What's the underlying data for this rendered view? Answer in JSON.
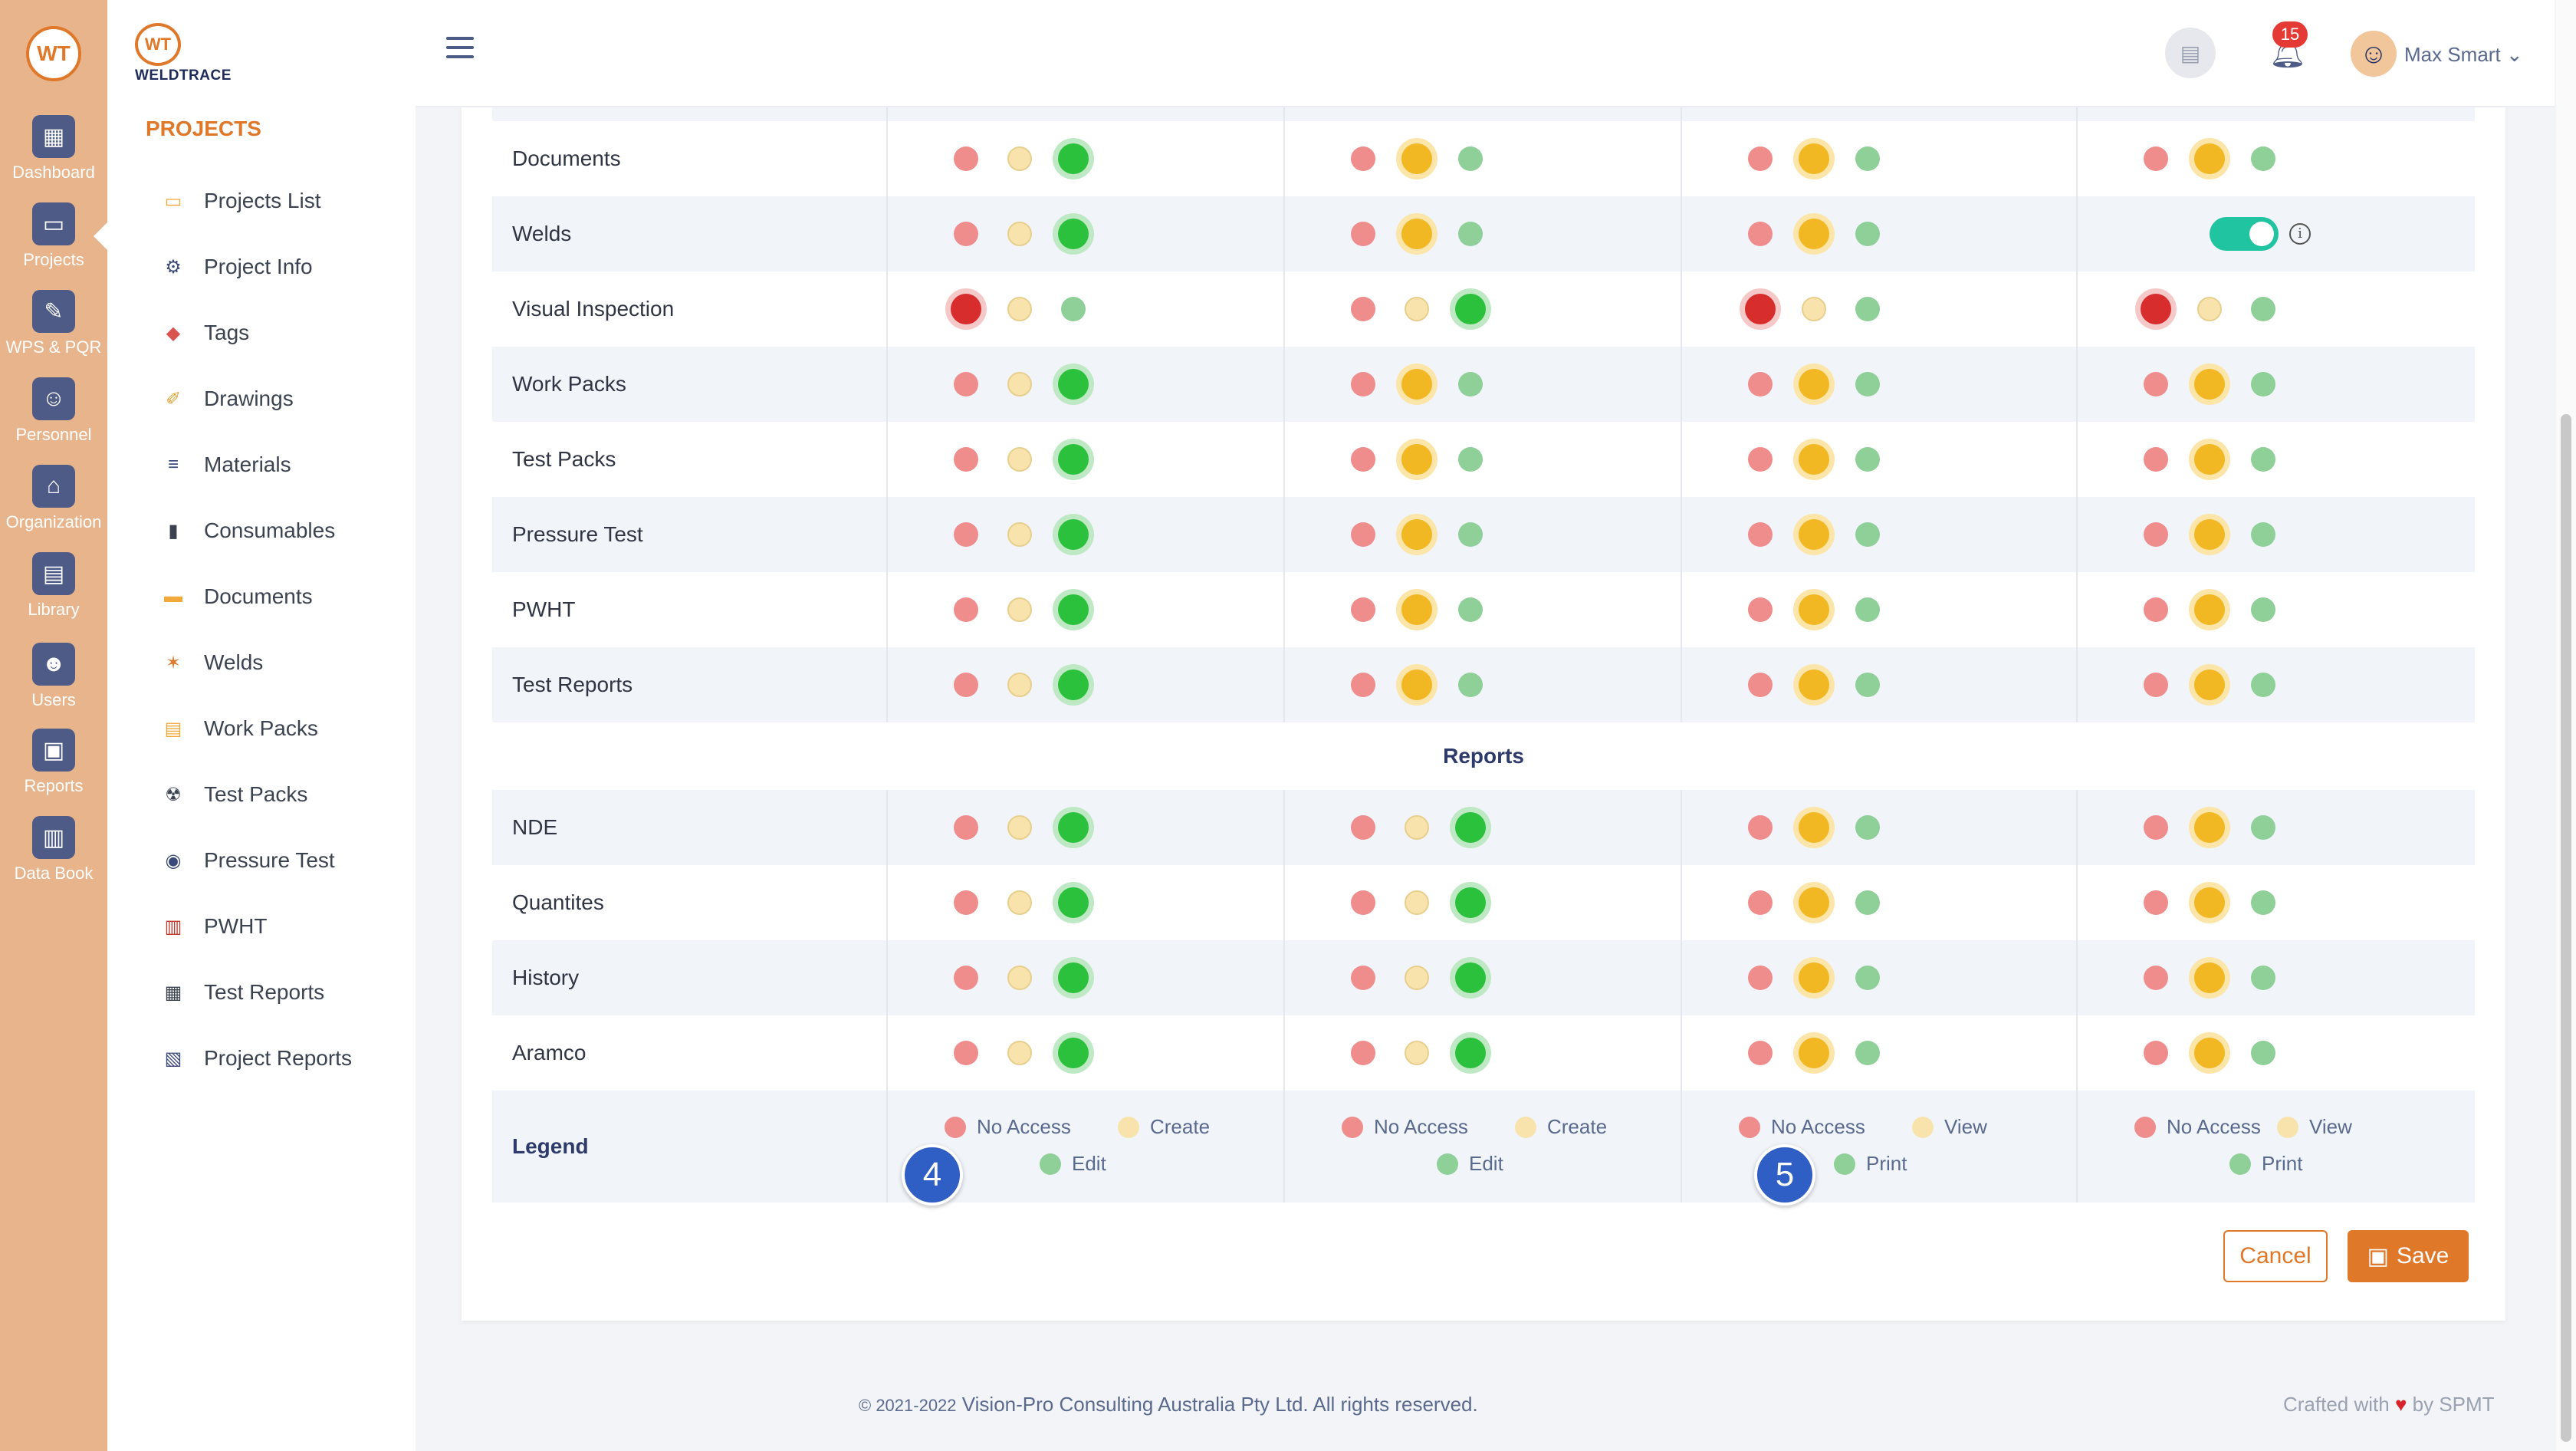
{
  "rail": {
    "logo": "WT",
    "items": [
      {
        "label": "Dashboard",
        "icon": "dashboard-icon",
        "glyph": "▦"
      },
      {
        "label": "Projects",
        "icon": "projects-folder-icon",
        "glyph": "▭"
      },
      {
        "label": "WPS & PQR",
        "icon": "wps-pqr-icon",
        "glyph": "✎"
      },
      {
        "label": "Personnel",
        "icon": "welder-icon",
        "glyph": "☺"
      },
      {
        "label": "Organization",
        "icon": "organization-icon",
        "glyph": "⌂"
      },
      {
        "label": "Library",
        "icon": "library-icon",
        "glyph": "▤"
      },
      {
        "label": "Users",
        "icon": "users-icon",
        "glyph": "☻"
      },
      {
        "label": "Reports",
        "icon": "reports-icon",
        "glyph": "▣"
      },
      {
        "label": "Data Book",
        "icon": "data-book-icon",
        "glyph": "▥"
      }
    ]
  },
  "brand": {
    "mark": "WT",
    "name": "WELDTRACE"
  },
  "sidebar": {
    "title": "PROJECTS",
    "items": [
      {
        "label": "Projects List",
        "icon": "projects-list-icon",
        "glyph": "▭",
        "color": "#f0a93a"
      },
      {
        "label": "Project Info",
        "icon": "project-info-gears-icon",
        "glyph": "⚙",
        "color": "#3b4a7a"
      },
      {
        "label": "Tags",
        "icon": "tag-icon",
        "glyph": "◆",
        "color": "#d9534f"
      },
      {
        "label": "Drawings",
        "icon": "drawings-icon",
        "glyph": "✐",
        "color": "#e0a030"
      },
      {
        "label": "Materials",
        "icon": "materials-pipes-icon",
        "glyph": "≡",
        "color": "#3b4a7a"
      },
      {
        "label": "Consumables",
        "icon": "consumables-icon",
        "glyph": "▮",
        "color": "#3b4351"
      },
      {
        "label": "Documents",
        "icon": "documents-folder-icon",
        "glyph": "▬",
        "color": "#f0a93a"
      },
      {
        "label": "Welds",
        "icon": "welds-spark-icon",
        "glyph": "✶",
        "color": "#e0782a"
      },
      {
        "label": "Work Packs",
        "icon": "work-packs-icon",
        "glyph": "▤",
        "color": "#f0a93a"
      },
      {
        "label": "Test Packs",
        "icon": "radiation-icon",
        "glyph": "☢",
        "color": "#3b4351"
      },
      {
        "label": "Pressure Test",
        "icon": "pressure-gauge-icon",
        "glyph": "◉",
        "color": "#3b4a7a"
      },
      {
        "label": "PWHT",
        "icon": "pwht-icon",
        "glyph": "▥",
        "color": "#c0392b"
      },
      {
        "label": "Test Reports",
        "icon": "test-reports-clipboard-icon",
        "glyph": "▦",
        "color": "#3b4351"
      },
      {
        "label": "Project Reports",
        "icon": "project-reports-icon",
        "glyph": "▧",
        "color": "#3b4a7a"
      }
    ]
  },
  "header": {
    "notifications_count": "15",
    "user_name": "Max Smart",
    "user_caret": "⌄"
  },
  "permissions": {
    "rows": [
      {
        "name": "Documents",
        "sel": [
          2,
          1,
          1,
          1
        ]
      },
      {
        "name": "Welds",
        "sel": [
          2,
          1,
          1,
          "toggle"
        ]
      },
      {
        "name": "Visual Inspection",
        "sel": [
          0,
          2,
          0,
          0
        ]
      },
      {
        "name": "Work Packs",
        "sel": [
          2,
          1,
          1,
          1
        ]
      },
      {
        "name": "Test Packs",
        "sel": [
          2,
          1,
          1,
          1
        ]
      },
      {
        "name": "Pressure Test",
        "sel": [
          2,
          1,
          1,
          1
        ]
      },
      {
        "name": "PWHT",
        "sel": [
          2,
          1,
          1,
          1
        ]
      },
      {
        "name": "Test Reports",
        "sel": [
          2,
          1,
          1,
          1
        ]
      }
    ],
    "section_reports": "Reports",
    "report_rows": [
      {
        "name": "NDE",
        "sel": [
          2,
          2,
          1,
          1
        ]
      },
      {
        "name": "Quantites",
        "sel": [
          2,
          2,
          1,
          1
        ]
      },
      {
        "name": "History",
        "sel": [
          2,
          2,
          1,
          1
        ]
      },
      {
        "name": "Aramco",
        "sel": [
          2,
          2,
          1,
          1
        ]
      }
    ],
    "legend": {
      "label": "Legend",
      "columns": [
        [
          "No Access",
          "Create",
          "Edit"
        ],
        [
          "No Access",
          "Create",
          "Edit"
        ],
        [
          "No Access",
          "View",
          "Print"
        ],
        [
          "No Access",
          "View",
          "Print"
        ]
      ]
    },
    "info_glyph": "i"
  },
  "step_markers": [
    "4",
    "5"
  ],
  "actions": {
    "cancel": "Cancel",
    "save": "Save"
  },
  "footer": {
    "copyright_prefix": "© 2021-2022",
    "copyright": "Vision-Pro Consulting Australia Pty Ltd. All rights reserved.",
    "crafted_prefix": "Crafted with",
    "crafted_suffix": "by SPMT"
  },
  "colors": {
    "accent": "#e0782a",
    "rail": "#e8b48b",
    "no_access": "#d82d2d",
    "create_view": "#f2b823",
    "edit_print": "#2cc13c",
    "toggle": "#20c4a0"
  }
}
